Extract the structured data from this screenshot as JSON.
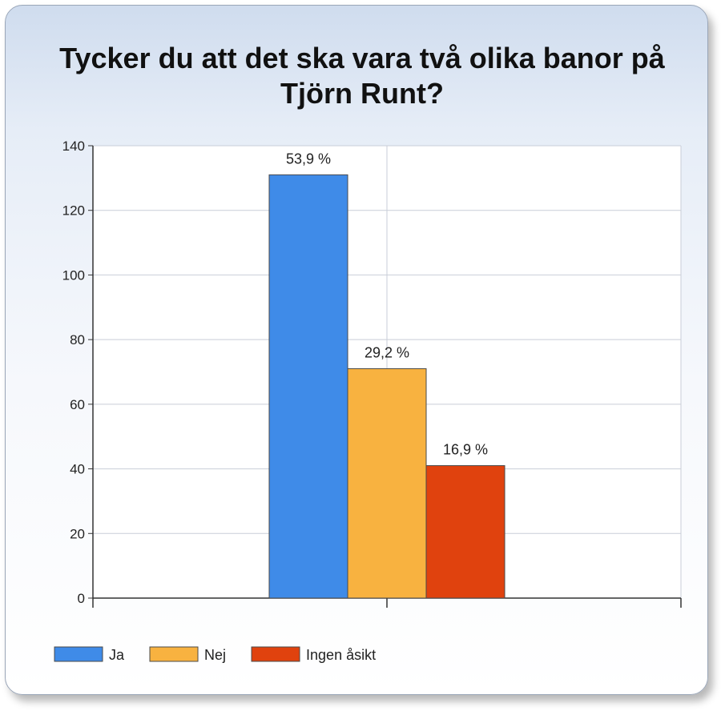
{
  "chart_data": {
    "type": "bar",
    "title": "Tycker du att det ska vara två olika banor på Tjörn Runt?",
    "categories": [
      ""
    ],
    "series": [
      {
        "name": "Ja",
        "values": [
          131
        ],
        "label": "53,9 %",
        "color": "#3f8be8"
      },
      {
        "name": "Nej",
        "values": [
          71
        ],
        "label": "29,2 %",
        "color": "#f8b240"
      },
      {
        "name": "Ingen åsikt",
        "values": [
          41
        ],
        "label": "16,9 %",
        "color": "#e0420e"
      }
    ],
    "ylim": [
      0,
      140
    ],
    "yticks": [
      "0",
      "20",
      "40",
      "60",
      "80",
      "100",
      "120",
      "140"
    ],
    "grid": true,
    "legend": "bottom-left"
  }
}
